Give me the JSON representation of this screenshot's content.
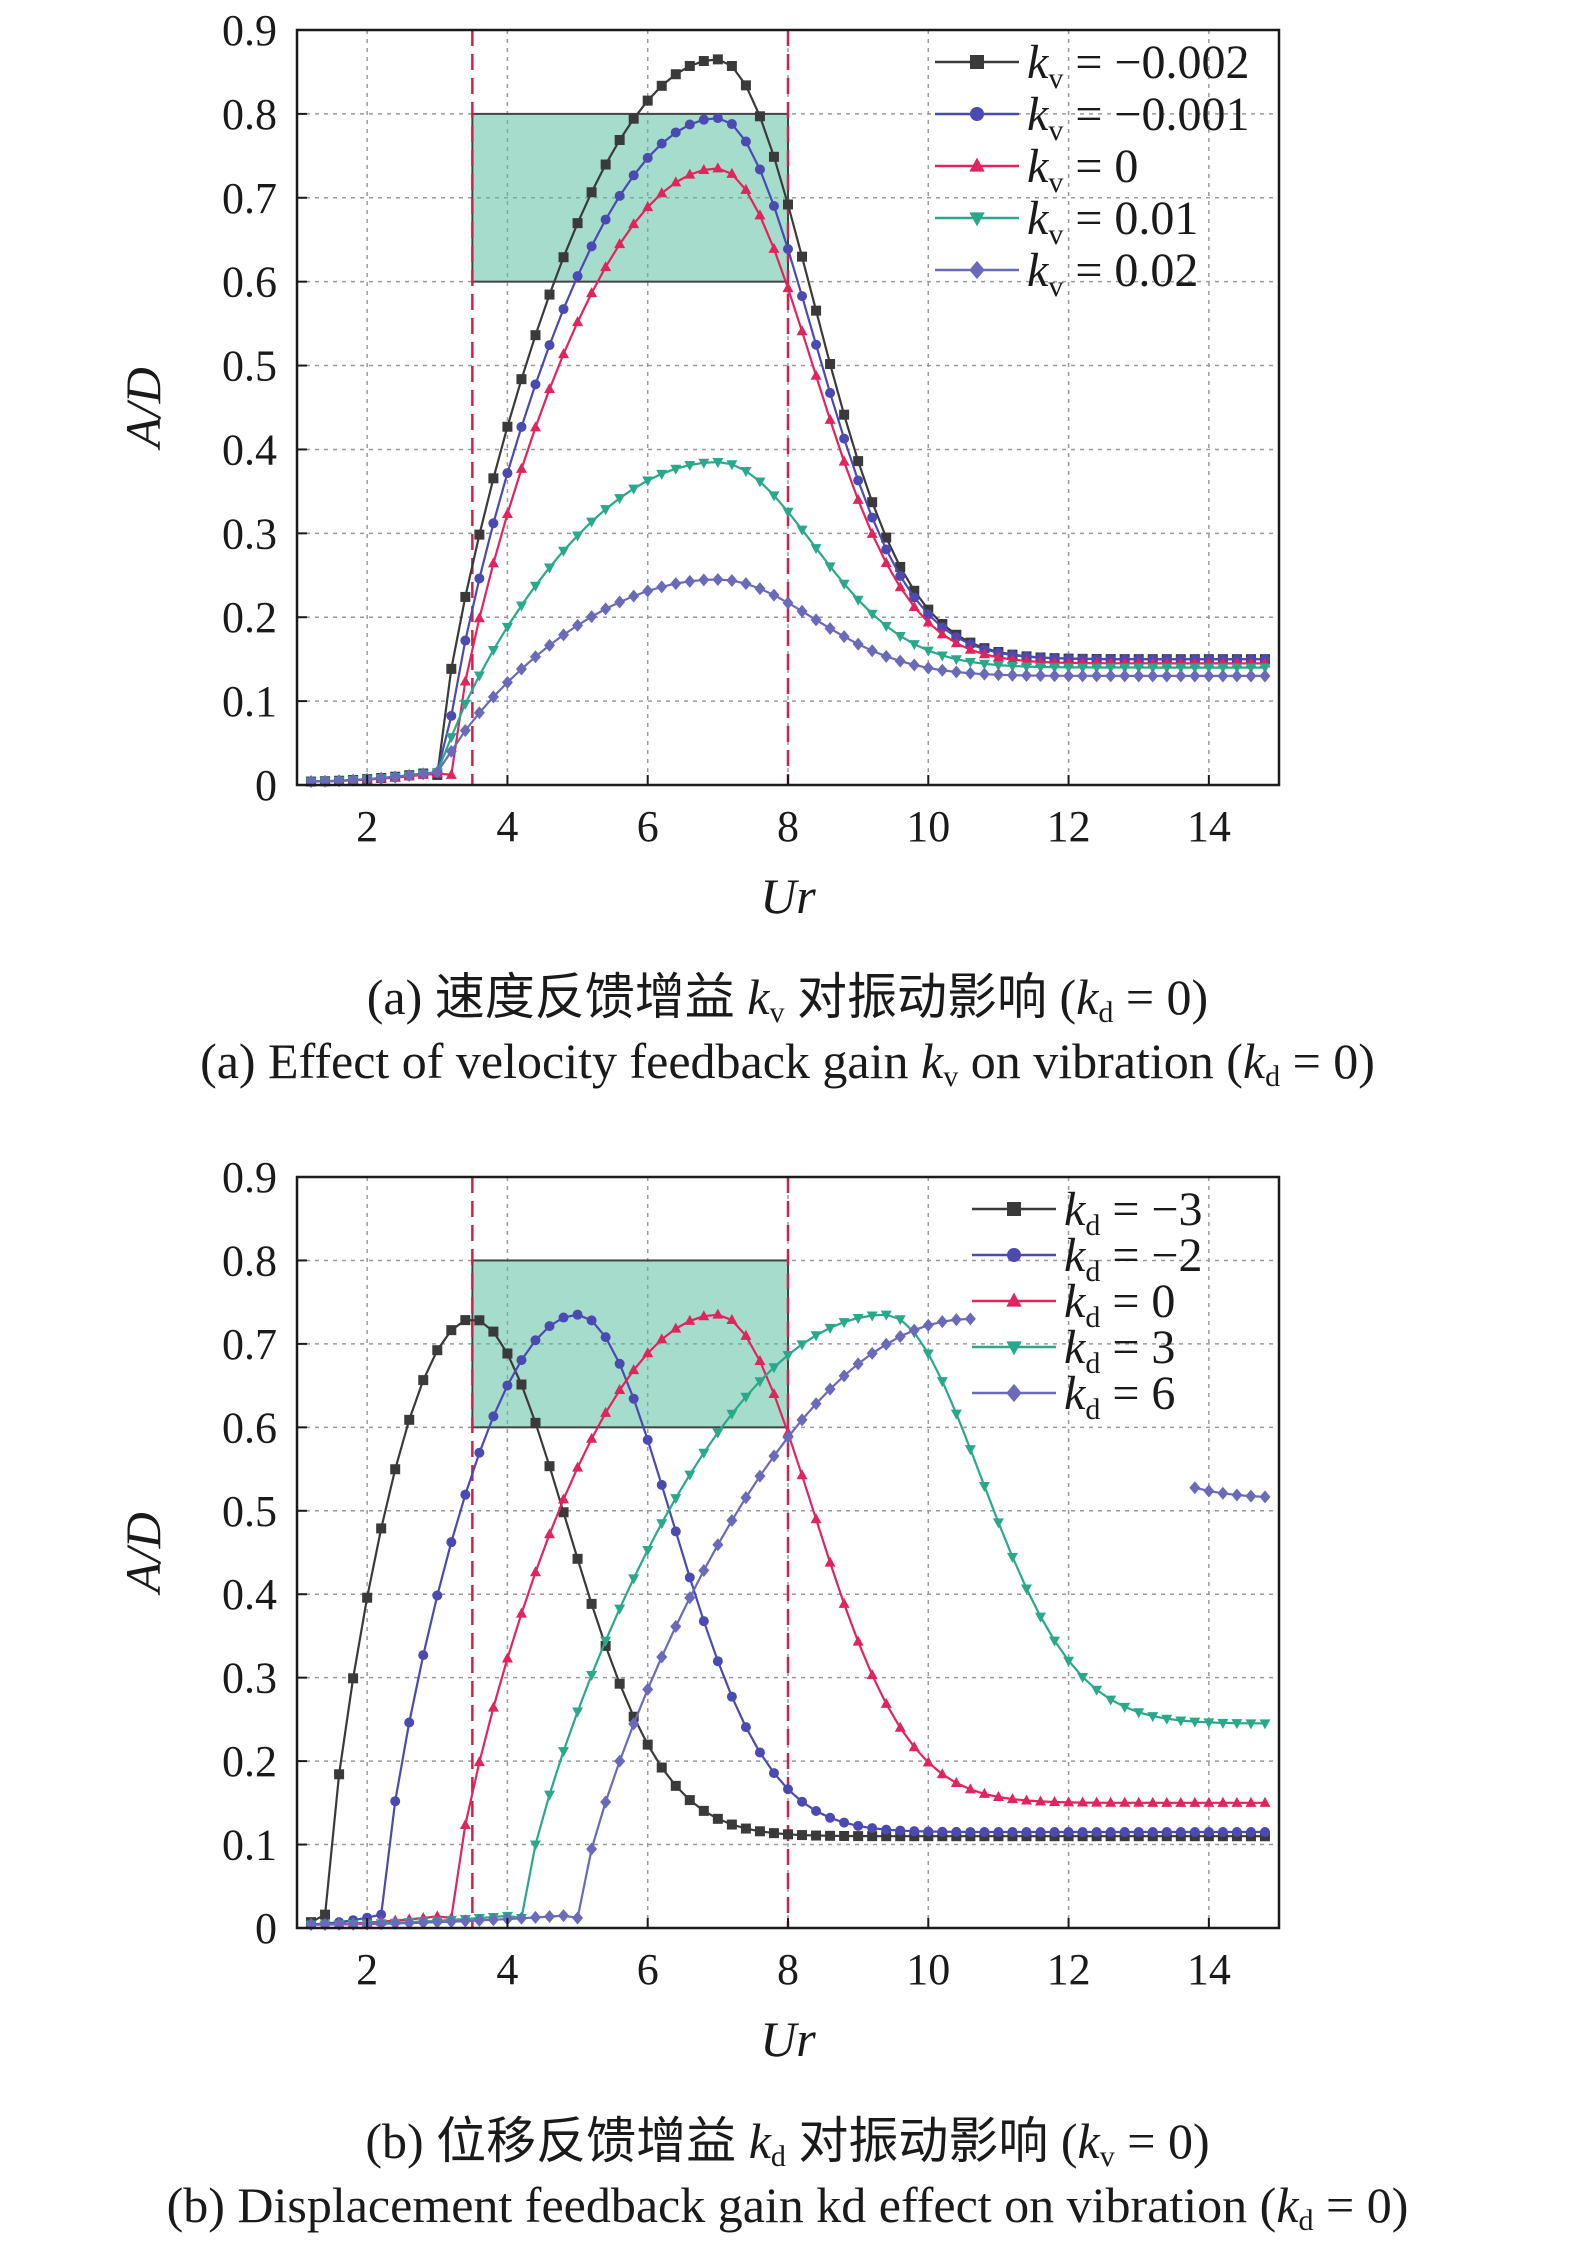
{
  "chart_data": [
    {
      "type": "line",
      "panel": "a",
      "xlabel": "Ur",
      "ylabel": "A/D",
      "xlim": [
        1,
        15
      ],
      "ylim": [
        0,
        0.9
      ],
      "xticks": [
        2,
        4,
        6,
        8,
        10,
        12,
        14
      ],
      "yticks": [
        0,
        0.1,
        0.2,
        0.3,
        0.4,
        0.5,
        0.6,
        0.7,
        0.8,
        0.9
      ],
      "grid": true,
      "legend_position": "top-right",
      "legend_var": "v",
      "series": [
        {
          "name": "k_v = −0.002",
          "value": "−0.002",
          "color": "#3a3a3a",
          "marker": "square",
          "onset": 3.0,
          "peak_x": 7.0,
          "peak_y": 0.865,
          "tail_y": 0.15
        },
        {
          "name": "k_v = −0.001",
          "value": "−0.001",
          "color": "#4a4ab0",
          "marker": "circle",
          "onset": 3.1,
          "peak_x": 7.0,
          "peak_y": 0.795,
          "tail_y": 0.15
        },
        {
          "name": "k_v = 0",
          "value": "0",
          "color": "#e0245e",
          "marker": "triangle-up",
          "onset": 3.2,
          "peak_x": 7.0,
          "peak_y": 0.735,
          "tail_y": 0.145
        },
        {
          "name": "k_v = 0.01",
          "value": "0.01",
          "color": "#2aa88a",
          "marker": "triangle-down",
          "onset": 3.05,
          "peak_x": 7.0,
          "peak_y": 0.385,
          "tail_y": 0.14
        },
        {
          "name": "k_v = 0.02",
          "value": "0.02",
          "color": "#6a6ab8",
          "marker": "diamond",
          "onset": 3.05,
          "peak_x": 7.0,
          "peak_y": 0.245,
          "tail_y": 0.13
        }
      ],
      "vlines": [
        3.5,
        8
      ],
      "highlight_box": {
        "x": [
          3.5,
          8
        ],
        "y": [
          0.6,
          0.8
        ]
      },
      "caption_cn": "(a) 速度反馈增益",
      "caption_cn_tail": "对振动影响 (",
      "caption_en": "(a) Effect of velocity feedback gain",
      "caption_en_mid": "on vibration (",
      "k_symbol": "k",
      "sub_v": "v",
      "sub_d": "d",
      "eq_zero": " = 0)"
    },
    {
      "type": "line",
      "panel": "b",
      "xlabel": "Ur",
      "ylabel": "A/D",
      "xlim": [
        1,
        15
      ],
      "ylim": [
        0,
        0.9
      ],
      "xticks": [
        2,
        4,
        6,
        8,
        10,
        12,
        14
      ],
      "yticks": [
        0,
        0.1,
        0.2,
        0.3,
        0.4,
        0.5,
        0.6,
        0.7,
        0.8,
        0.9
      ],
      "grid": true,
      "legend_position": "top-right",
      "legend_var": "d",
      "series": [
        {
          "name": "k_d = −3",
          "value": "−3",
          "color": "#3a3a3a",
          "marker": "square",
          "onset": 1.4,
          "peak_x": 3.5,
          "peak_y": 0.73,
          "tail_y": 0.11
        },
        {
          "name": "k_d = −2",
          "value": "−2",
          "color": "#4a4ab0",
          "marker": "circle",
          "onset": 2.2,
          "peak_x": 5.0,
          "peak_y": 0.735,
          "tail_y": 0.115
        },
        {
          "name": "k_d = 0",
          "value": "0",
          "color": "#e0245e",
          "marker": "triangle-up",
          "onset": 3.2,
          "peak_x": 7.0,
          "peak_y": 0.735,
          "tail_y": 0.15
        },
        {
          "name": "k_d = 3",
          "value": "3",
          "color": "#2aa88a",
          "marker": "triangle-down",
          "onset": 4.2,
          "peak_x": 9.4,
          "peak_y": 0.735,
          "tail_y": 0.245
        },
        {
          "name": "k_d = 6",
          "value": "6",
          "color": "#6a6ab8",
          "marker": "diamond",
          "onset": 5.0,
          "peak_x": 10.6,
          "peak_y": 0.73,
          "tail_y": 0.515
        }
      ],
      "vlines": [
        3.5,
        8
      ],
      "highlight_box": {
        "x": [
          3.5,
          8
        ],
        "y": [
          0.6,
          0.8
        ]
      },
      "caption_cn": "(b) 位移反馈增益",
      "caption_cn_tail": "对振动影响 (",
      "caption_en": "(b) Displacement feedback gain kd effect on vibration (",
      "k_symbol": "k",
      "sub_v": "v",
      "sub_d": "d",
      "eq_zero": " = 0)"
    }
  ]
}
